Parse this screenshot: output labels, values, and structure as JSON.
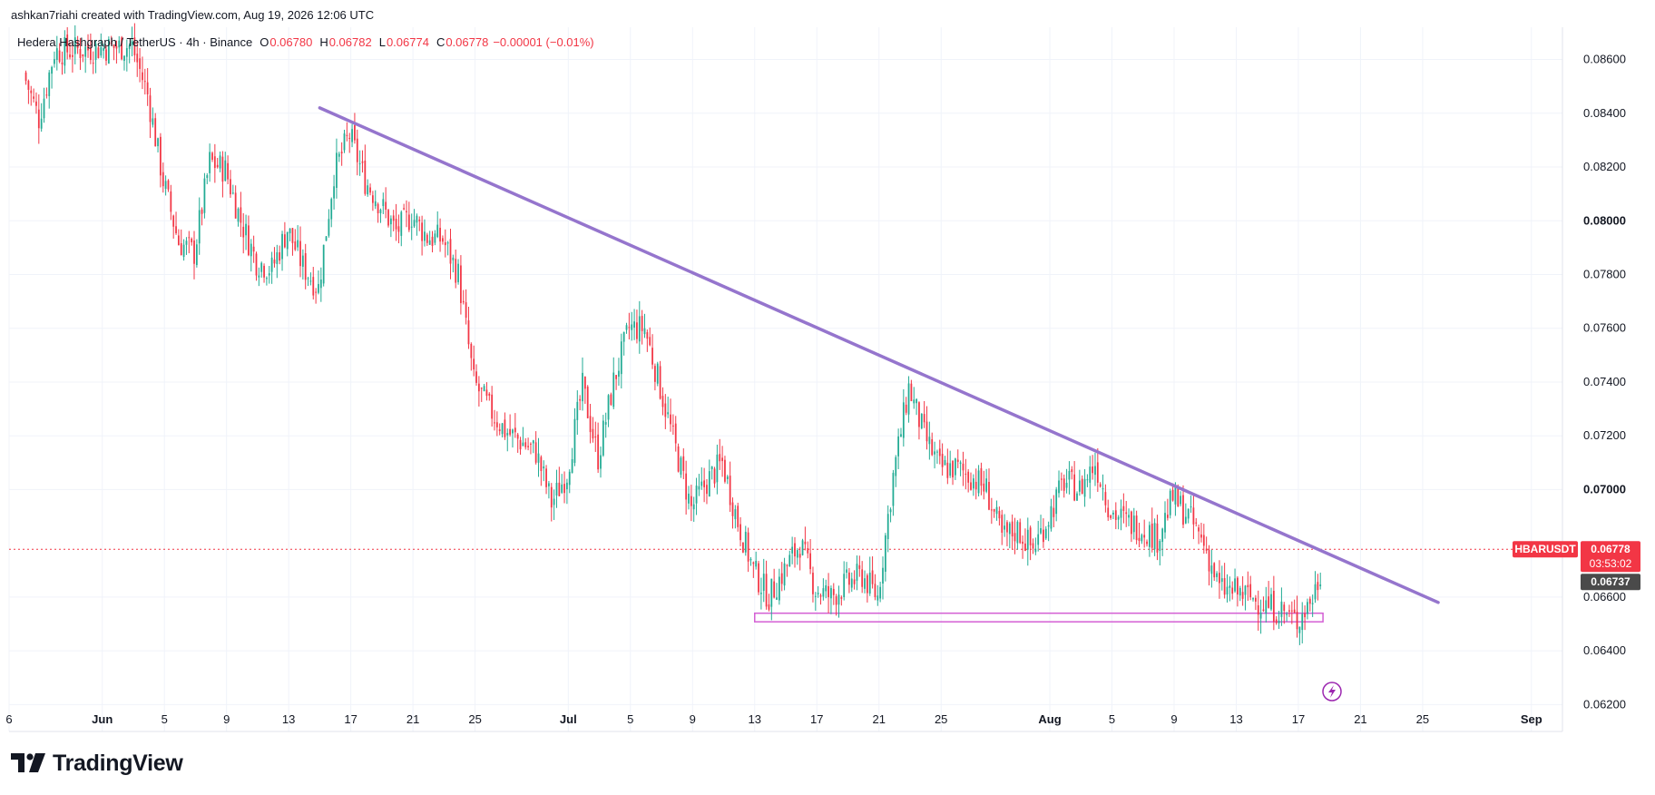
{
  "header": {
    "credit": "ashkan7riahi created with TradingView.com, Aug 19, 2026 12:06 UTC"
  },
  "legend": {
    "symbol": "Hedera Hashgraph / TetherUS · 4h · Binance",
    "o_label": "O",
    "o_value": "0.06780",
    "h_label": "H",
    "h_value": "0.06782",
    "l_label": "L",
    "l_value": "0.06774",
    "c_label": "C",
    "c_value": "0.06778",
    "change": "−0.00001 (−0.01%)"
  },
  "price_axis": {
    "ticks": [
      "0.08600",
      "0.08400",
      "0.08200",
      "0.08000",
      "0.07800",
      "0.07600",
      "0.07400",
      "0.07200",
      "0.07000",
      "0.06600",
      "0.06400",
      "0.06200"
    ],
    "bold_ticks": [
      "0.08000",
      "0.07000"
    ]
  },
  "price_tags": {
    "symbol_tag": "HBARUSDT",
    "last_price": "0.06778",
    "countdown": "03:53:02",
    "secondary_price": "0.06737"
  },
  "time_axis": {
    "labels": [
      "6",
      "Jun",
      "5",
      "9",
      "13",
      "17",
      "21",
      "25",
      "Jul",
      "5",
      "9",
      "13",
      "17",
      "21",
      "25",
      "Aug",
      "5",
      "9",
      "13",
      "17",
      "21",
      "25",
      "Sep"
    ]
  },
  "footer": {
    "brand": "TradingView"
  },
  "colors": {
    "up": "#22ab94",
    "down": "#f23645",
    "trendline": "#9575cd",
    "support_box": "#d45fd4",
    "grid": "#f0f3fa",
    "price_line": "#f23645",
    "secondary_tag": "#4a4a4a"
  },
  "chart_data": {
    "type": "candlestick",
    "interval": "4h",
    "y_range": [
      0.061,
      0.0872
    ],
    "x_range": [
      "2026-05-26",
      "2026-09-03"
    ],
    "grid": true,
    "swing_points": [
      {
        "date": "2026-05-27",
        "price": 0.0855
      },
      {
        "date": "2026-05-28",
        "price": 0.0838
      },
      {
        "date": "2026-05-29",
        "price": 0.0863
      },
      {
        "date": "2026-06-03",
        "price": 0.0865
      },
      {
        "date": "2026-06-04",
        "price": 0.0847
      },
      {
        "date": "2026-06-05",
        "price": 0.0815
      },
      {
        "date": "2026-06-06",
        "price": 0.0792
      },
      {
        "date": "2026-06-07",
        "price": 0.0788
      },
      {
        "date": "2026-06-08",
        "price": 0.0822
      },
      {
        "date": "2026-06-09",
        "price": 0.0819
      },
      {
        "date": "2026-06-10",
        "price": 0.08
      },
      {
        "date": "2026-06-11",
        "price": 0.0785
      },
      {
        "date": "2026-06-12",
        "price": 0.0782
      },
      {
        "date": "2026-06-13",
        "price": 0.0797
      },
      {
        "date": "2026-06-14",
        "price": 0.0783
      },
      {
        "date": "2026-06-15",
        "price": 0.0775
      },
      {
        "date": "2026-06-16",
        "price": 0.0818
      },
      {
        "date": "2026-06-17",
        "price": 0.0832
      },
      {
        "date": "2026-06-18",
        "price": 0.0815
      },
      {
        "date": "2026-06-19",
        "price": 0.0806
      },
      {
        "date": "2026-06-20",
        "price": 0.0796
      },
      {
        "date": "2026-06-21",
        "price": 0.0802
      },
      {
        "date": "2026-06-22",
        "price": 0.0794
      },
      {
        "date": "2026-06-23",
        "price": 0.0793
      },
      {
        "date": "2026-06-24",
        "price": 0.078
      },
      {
        "date": "2026-06-25",
        "price": 0.074
      },
      {
        "date": "2026-06-26",
        "price": 0.073
      },
      {
        "date": "2026-06-27",
        "price": 0.0722
      },
      {
        "date": "2026-06-28",
        "price": 0.0718
      },
      {
        "date": "2026-06-29",
        "price": 0.0714
      },
      {
        "date": "2026-06-30",
        "price": 0.0695
      },
      {
        "date": "2026-07-01",
        "price": 0.0706
      },
      {
        "date": "2026-07-02",
        "price": 0.0738
      },
      {
        "date": "2026-07-03",
        "price": 0.0712
      },
      {
        "date": "2026-07-04",
        "price": 0.074
      },
      {
        "date": "2026-07-05",
        "price": 0.076
      },
      {
        "date": "2026-07-06",
        "price": 0.076
      },
      {
        "date": "2026-07-07",
        "price": 0.0738
      },
      {
        "date": "2026-07-08",
        "price": 0.0715
      },
      {
        "date": "2026-07-09",
        "price": 0.0693
      },
      {
        "date": "2026-07-10",
        "price": 0.0703
      },
      {
        "date": "2026-07-11",
        "price": 0.071
      },
      {
        "date": "2026-07-12",
        "price": 0.0688
      },
      {
        "date": "2026-07-13",
        "price": 0.067
      },
      {
        "date": "2026-07-14",
        "price": 0.066
      },
      {
        "date": "2026-07-15",
        "price": 0.067
      },
      {
        "date": "2026-07-16",
        "price": 0.068
      },
      {
        "date": "2026-07-17",
        "price": 0.0663
      },
      {
        "date": "2026-07-18",
        "price": 0.066
      },
      {
        "date": "2026-07-19",
        "price": 0.0665
      },
      {
        "date": "2026-07-20",
        "price": 0.0668
      },
      {
        "date": "2026-07-21",
        "price": 0.066
      },
      {
        "date": "2026-07-22",
        "price": 0.0705
      },
      {
        "date": "2026-07-23",
        "price": 0.0738
      },
      {
        "date": "2026-07-24",
        "price": 0.072
      },
      {
        "date": "2026-07-25",
        "price": 0.0708
      },
      {
        "date": "2026-07-26",
        "price": 0.0708
      },
      {
        "date": "2026-07-27",
        "price": 0.0705
      },
      {
        "date": "2026-07-28",
        "price": 0.07
      },
      {
        "date": "2026-07-29",
        "price": 0.0682
      },
      {
        "date": "2026-07-30",
        "price": 0.0685
      },
      {
        "date": "2026-07-31",
        "price": 0.0678
      },
      {
        "date": "2026-08-01",
        "price": 0.069
      },
      {
        "date": "2026-08-02",
        "price": 0.0703
      },
      {
        "date": "2026-08-03",
        "price": 0.07
      },
      {
        "date": "2026-08-04",
        "price": 0.071
      },
      {
        "date": "2026-08-05",
        "price": 0.0692
      },
      {
        "date": "2026-08-06",
        "price": 0.0688
      },
      {
        "date": "2026-08-07",
        "price": 0.0686
      },
      {
        "date": "2026-08-08",
        "price": 0.0682
      },
      {
        "date": "2026-08-09",
        "price": 0.0697
      },
      {
        "date": "2026-08-10",
        "price": 0.069
      },
      {
        "date": "2026-08-11",
        "price": 0.068
      },
      {
        "date": "2026-08-12",
        "price": 0.0663
      },
      {
        "date": "2026-08-13",
        "price": 0.0662
      },
      {
        "date": "2026-08-14",
        "price": 0.066
      },
      {
        "date": "2026-08-15",
        "price": 0.0657
      },
      {
        "date": "2026-08-16",
        "price": 0.0655
      },
      {
        "date": "2026-08-17",
        "price": 0.0651
      },
      {
        "date": "2026-08-18",
        "price": 0.066
      },
      {
        "date": "2026-08-19",
        "price": 0.0678
      }
    ],
    "last_price": 0.06778,
    "secondary_price": 0.06737,
    "drawings": {
      "trendline": {
        "start": {
          "date": "2026-06-15",
          "price": 0.0842
        },
        "end": {
          "date": "2026-08-26",
          "price": 0.0658
        }
      },
      "support_box": {
        "start_date": "2026-07-13",
        "end_date": "2026-08-18",
        "top": 0.0654,
        "bottom": 0.06508
      }
    }
  }
}
